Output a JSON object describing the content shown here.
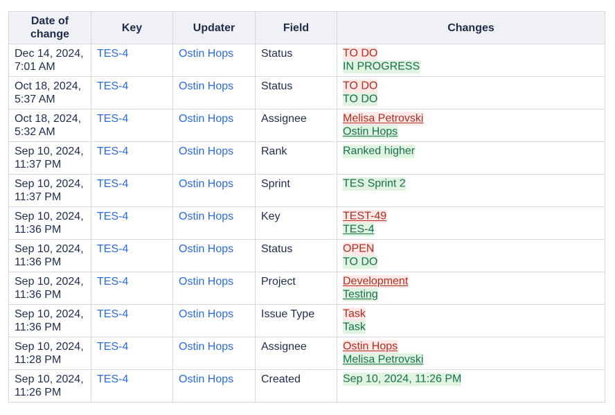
{
  "colors": {
    "text": "#1d2b4c",
    "link": "#2a6ae0",
    "border": "#d5d8dd",
    "header_bg": "#f0f1f4",
    "old_text": "#b02e1e",
    "old_bg": "#fce8e7",
    "new_text": "#16714e",
    "new_bg": "#e0f4e0"
  },
  "table": {
    "columns": [
      {
        "id": "date",
        "label": "Date of change"
      },
      {
        "id": "key",
        "label": "Key"
      },
      {
        "id": "updater",
        "label": "Updater"
      },
      {
        "id": "field",
        "label": "Field"
      },
      {
        "id": "changes",
        "label": "Changes"
      }
    ],
    "rows": [
      {
        "date_lines": [
          "Dec 14, 2024,",
          "7:01 AM"
        ],
        "key": "TES-4",
        "updater": "Ostin Hops",
        "field": "Status",
        "changes": [
          {
            "text": "TO DO",
            "kind": "old",
            "link": false
          },
          {
            "text": "IN PROGRESS",
            "kind": "new",
            "link": false
          }
        ]
      },
      {
        "date_lines": [
          "Oct 18, 2024,",
          "5:37 AM"
        ],
        "key": "TES-4",
        "updater": "Ostin Hops",
        "field": "Status",
        "changes": [
          {
            "text": "TO DO",
            "kind": "old",
            "link": false
          },
          {
            "text": "TO DO",
            "kind": "new",
            "link": false
          }
        ]
      },
      {
        "date_lines": [
          "Oct 18, 2024,",
          "5:32 AM"
        ],
        "key": "TES-4",
        "updater": "Ostin Hops",
        "field": "Assignee",
        "changes": [
          {
            "text": "Melisa Petrovski",
            "kind": "old",
            "link": true
          },
          {
            "text": "Ostin Hops",
            "kind": "new",
            "link": true
          }
        ]
      },
      {
        "date_lines": [
          "Sep 10, 2024,",
          "11:37 PM"
        ],
        "key": "TES-4",
        "updater": "Ostin Hops",
        "field": "Rank",
        "changes": [
          {
            "text": "Ranked higher",
            "kind": "new",
            "link": false
          }
        ]
      },
      {
        "date_lines": [
          "Sep 10, 2024,",
          "11:37 PM"
        ],
        "key": "TES-4",
        "updater": "Ostin Hops",
        "field": "Sprint",
        "changes": [
          {
            "text": "TES Sprint 2",
            "kind": "new",
            "link": false
          }
        ]
      },
      {
        "date_lines": [
          "Sep 10, 2024,",
          "11:36 PM"
        ],
        "key": "TES-4",
        "updater": "Ostin Hops",
        "field": "Key",
        "changes": [
          {
            "text": "TEST-49",
            "kind": "old",
            "link": true
          },
          {
            "text": "TES-4",
            "kind": "new",
            "link": true
          }
        ]
      },
      {
        "date_lines": [
          "Sep 10, 2024,",
          "11:36 PM"
        ],
        "key": "TES-4",
        "updater": "Ostin Hops",
        "field": "Status",
        "changes": [
          {
            "text": "OPEN",
            "kind": "old",
            "link": false
          },
          {
            "text": "TO DO",
            "kind": "new",
            "link": false
          }
        ]
      },
      {
        "date_lines": [
          "Sep 10, 2024,",
          "11:36 PM"
        ],
        "key": "TES-4",
        "updater": "Ostin Hops",
        "field": "Project",
        "changes": [
          {
            "text": "Development",
            "kind": "old",
            "link": true
          },
          {
            "text": "Testing",
            "kind": "new",
            "link": true
          }
        ]
      },
      {
        "date_lines": [
          "Sep 10, 2024,",
          "11:36 PM"
        ],
        "key": "TES-4",
        "updater": "Ostin Hops",
        "field": "Issue Type",
        "changes": [
          {
            "text": "Task",
            "kind": "old",
            "link": false
          },
          {
            "text": "Task",
            "kind": "new",
            "link": false
          }
        ]
      },
      {
        "date_lines": [
          "Sep 10, 2024,",
          "11:28 PM"
        ],
        "key": "TES-4",
        "updater": "Ostin Hops",
        "field": "Assignee",
        "changes": [
          {
            "text": "Ostin Hops",
            "kind": "old",
            "link": true
          },
          {
            "text": "Melisa Petrovski",
            "kind": "new",
            "link": true
          }
        ]
      },
      {
        "date_lines": [
          "Sep 10, 2024,",
          "11:26 PM"
        ],
        "key": "TES-4",
        "updater": "Ostin Hops",
        "field": "Created",
        "changes": [
          {
            "text": "Sep 10, 2024, 11:26 PM",
            "kind": "new",
            "link": false
          }
        ]
      }
    ]
  }
}
